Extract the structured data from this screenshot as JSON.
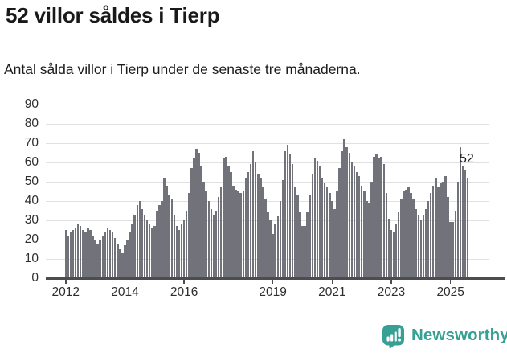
{
  "header": {
    "title": "52 villor såldes i Tierp",
    "subtitle": "Antal sålda villor i Tierp under de senaste tre månaderna."
  },
  "chart_data": {
    "type": "bar",
    "title": "52 villor såldes i Tierp",
    "subtitle": "Antal sålda villor i Tierp under de senaste tre månaderna.",
    "xlabel": "",
    "ylabel": "",
    "x_start": "2012-01",
    "x_end": "2025-08",
    "x_interval": "month",
    "ylim": [
      0,
      90
    ],
    "grid": true,
    "yticks": [
      0,
      10,
      20,
      30,
      40,
      50,
      60,
      70,
      80,
      90
    ],
    "xticks": [
      {
        "label": "2012",
        "index": 0
      },
      {
        "label": "2014",
        "index": 24
      },
      {
        "label": "2016",
        "index": 48
      },
      {
        "label": "2019",
        "index": 84
      },
      {
        "label": "2021",
        "index": 108
      },
      {
        "label": "2023",
        "index": 132
      },
      {
        "label": "2025",
        "index": 156
      }
    ],
    "values": [
      25,
      22,
      24,
      25,
      26,
      28,
      27,
      25,
      24,
      26,
      25,
      22,
      20,
      18,
      20,
      22,
      24,
      26,
      25,
      24,
      21,
      18,
      15,
      13,
      17,
      20,
      24,
      28,
      33,
      38,
      40,
      36,
      33,
      30,
      28,
      26,
      27,
      35,
      38,
      40,
      52,
      48,
      43,
      41,
      33,
      27,
      25,
      28,
      30,
      35,
      44,
      57,
      62,
      67,
      65,
      58,
      50,
      45,
      40,
      36,
      33,
      35,
      42,
      47,
      62,
      63,
      58,
      55,
      48,
      46,
      45,
      44,
      45,
      52,
      55,
      59,
      66,
      60,
      54,
      52,
      47,
      41,
      34,
      30,
      23,
      28,
      32,
      40,
      51,
      66,
      69,
      64,
      59,
      47,
      43,
      34,
      27,
      27,
      34,
      43,
      54,
      62,
      61,
      58,
      52,
      49,
      47,
      44,
      40,
      36,
      45,
      57,
      66,
      72,
      68,
      65,
      60,
      58,
      55,
      53,
      48,
      45,
      40,
      39,
      50,
      63,
      64,
      62,
      63,
      59,
      44,
      31,
      25,
      24,
      28,
      34,
      41,
      45,
      46,
      47,
      44,
      41,
      36,
      33,
      30,
      33,
      36,
      40,
      44,
      48,
      52,
      47,
      49,
      50,
      53,
      42,
      29,
      29,
      35,
      50,
      68,
      58,
      56,
      52
    ],
    "highlight_last": true,
    "latest_value": 52,
    "annotation": "52",
    "bar_color": "#72727b",
    "highlight_color": "#378f93"
  },
  "footer": {
    "brand": "Newsworthy",
    "brand_color": "#35a093"
  }
}
